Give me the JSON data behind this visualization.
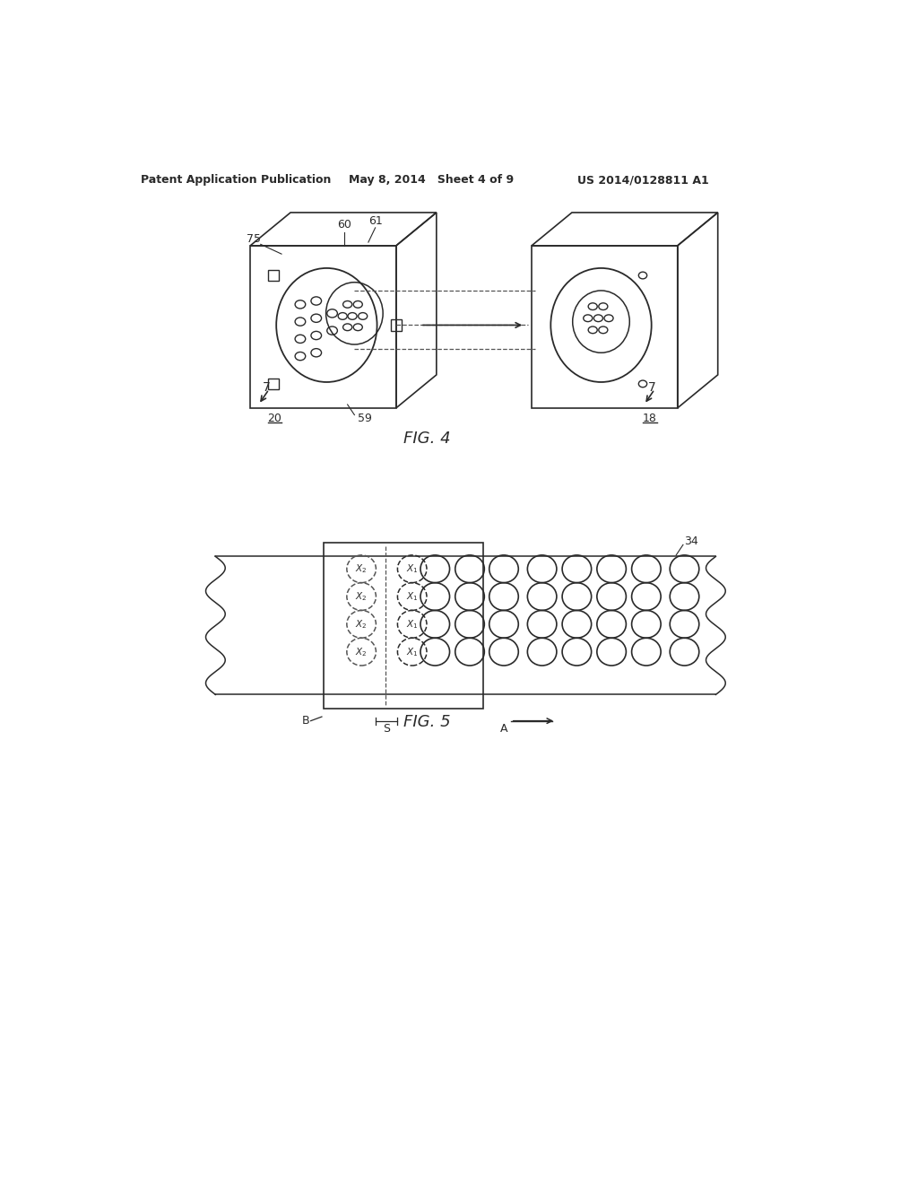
{
  "background_color": "#ffffff",
  "header_text": "Patent Application Publication",
  "header_date": "May 8, 2014   Sheet 4 of 9",
  "header_patent": "US 2014/0128811 A1",
  "fig4_caption": "FIG. 4",
  "fig5_caption": "FIG. 5",
  "line_color": "#2a2a2a",
  "dashed_color": "#555555"
}
